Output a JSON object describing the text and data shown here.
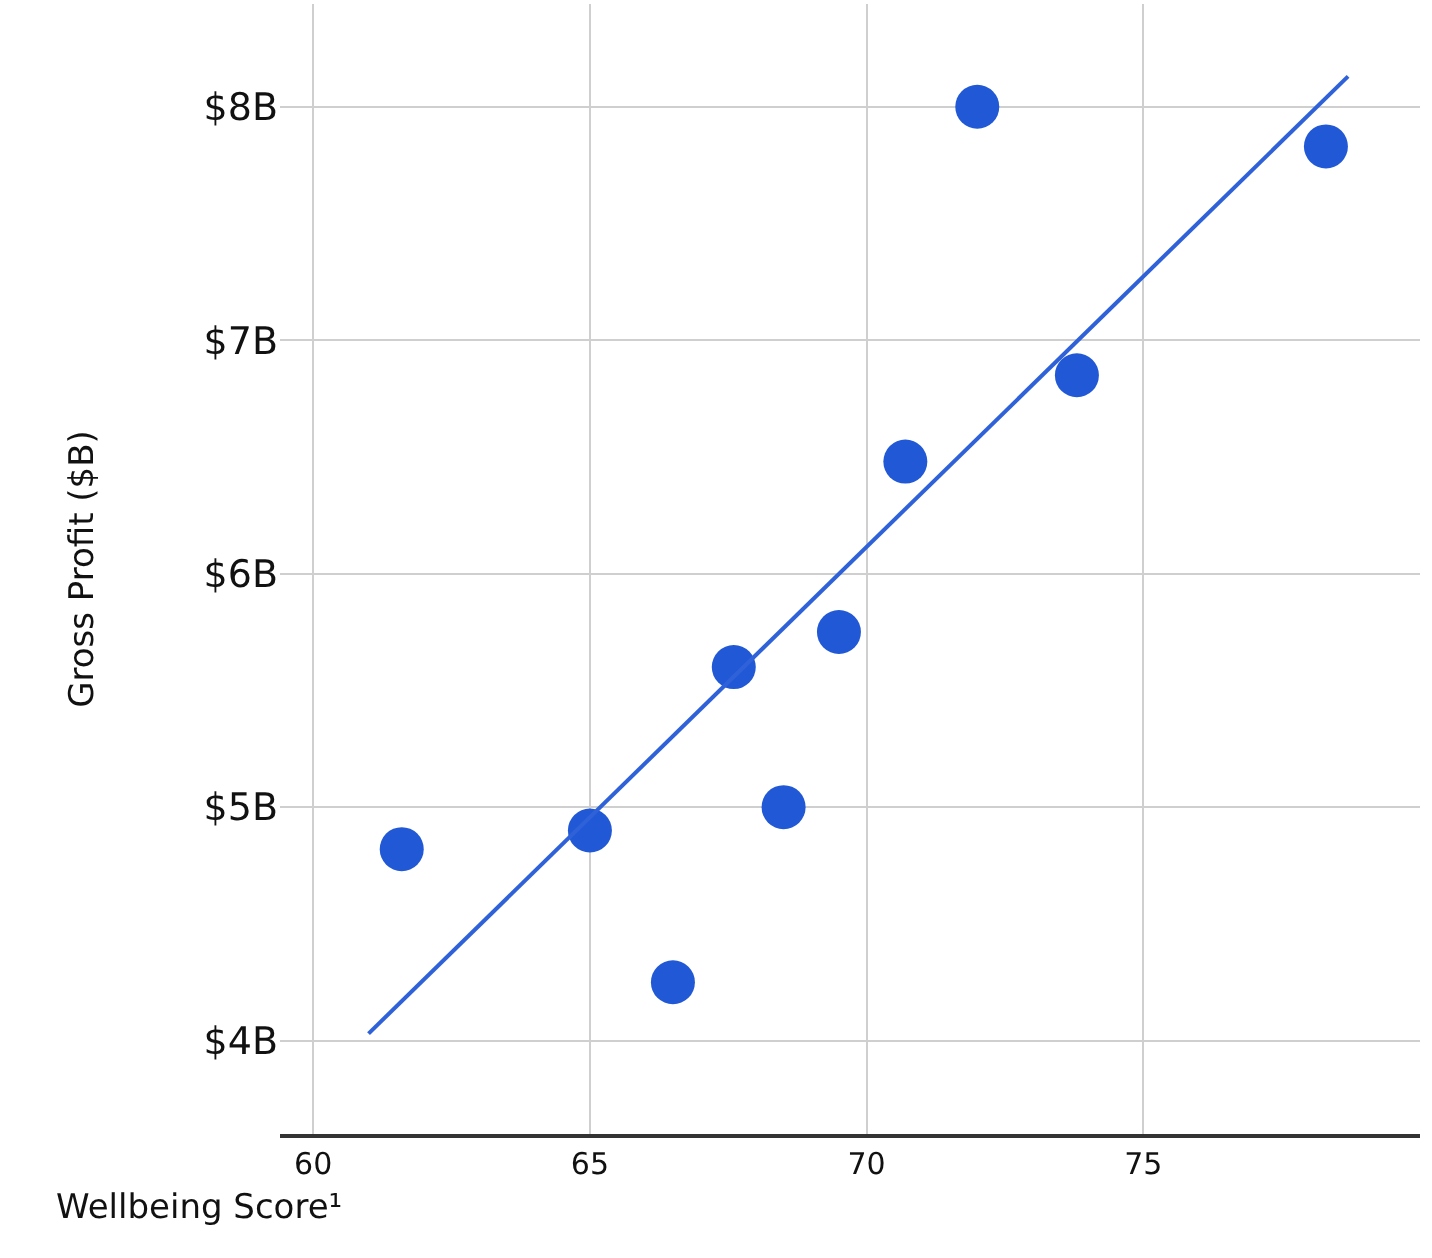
{
  "chart_data": {
    "type": "scatter",
    "xlabel": "Wellbeing Score¹",
    "ylabel": "Gross Profit ($B)",
    "xlim": [
      59.4,
      80
    ],
    "ylim": [
      3.6,
      8.44
    ],
    "xticks": [
      60,
      65,
      70,
      75
    ],
    "yticks": [
      {
        "value": 4,
        "label": "$4B"
      },
      {
        "value": 5,
        "label": "$5B"
      },
      {
        "value": 6,
        "label": "$6B"
      },
      {
        "value": 7,
        "label": "$7B"
      },
      {
        "value": 8,
        "label": "$8B"
      }
    ],
    "grid": true,
    "legend": false,
    "series": [
      {
        "marker": "circle",
        "color": "#2158d6",
        "x": [
          61.6,
          65.0,
          66.5,
          67.6,
          68.5,
          69.5,
          70.7,
          72.0,
          73.8,
          78.3
        ],
        "values": [
          4.82,
          4.9,
          4.25,
          5.6,
          5.0,
          5.75,
          6.48,
          8.0,
          6.85,
          7.83
        ]
      },
      {
        "type": "line",
        "marker": "none",
        "color": "#2f62d9",
        "x": [
          61.0,
          78.7
        ],
        "values": [
          4.03,
          8.13
        ]
      }
    ]
  }
}
